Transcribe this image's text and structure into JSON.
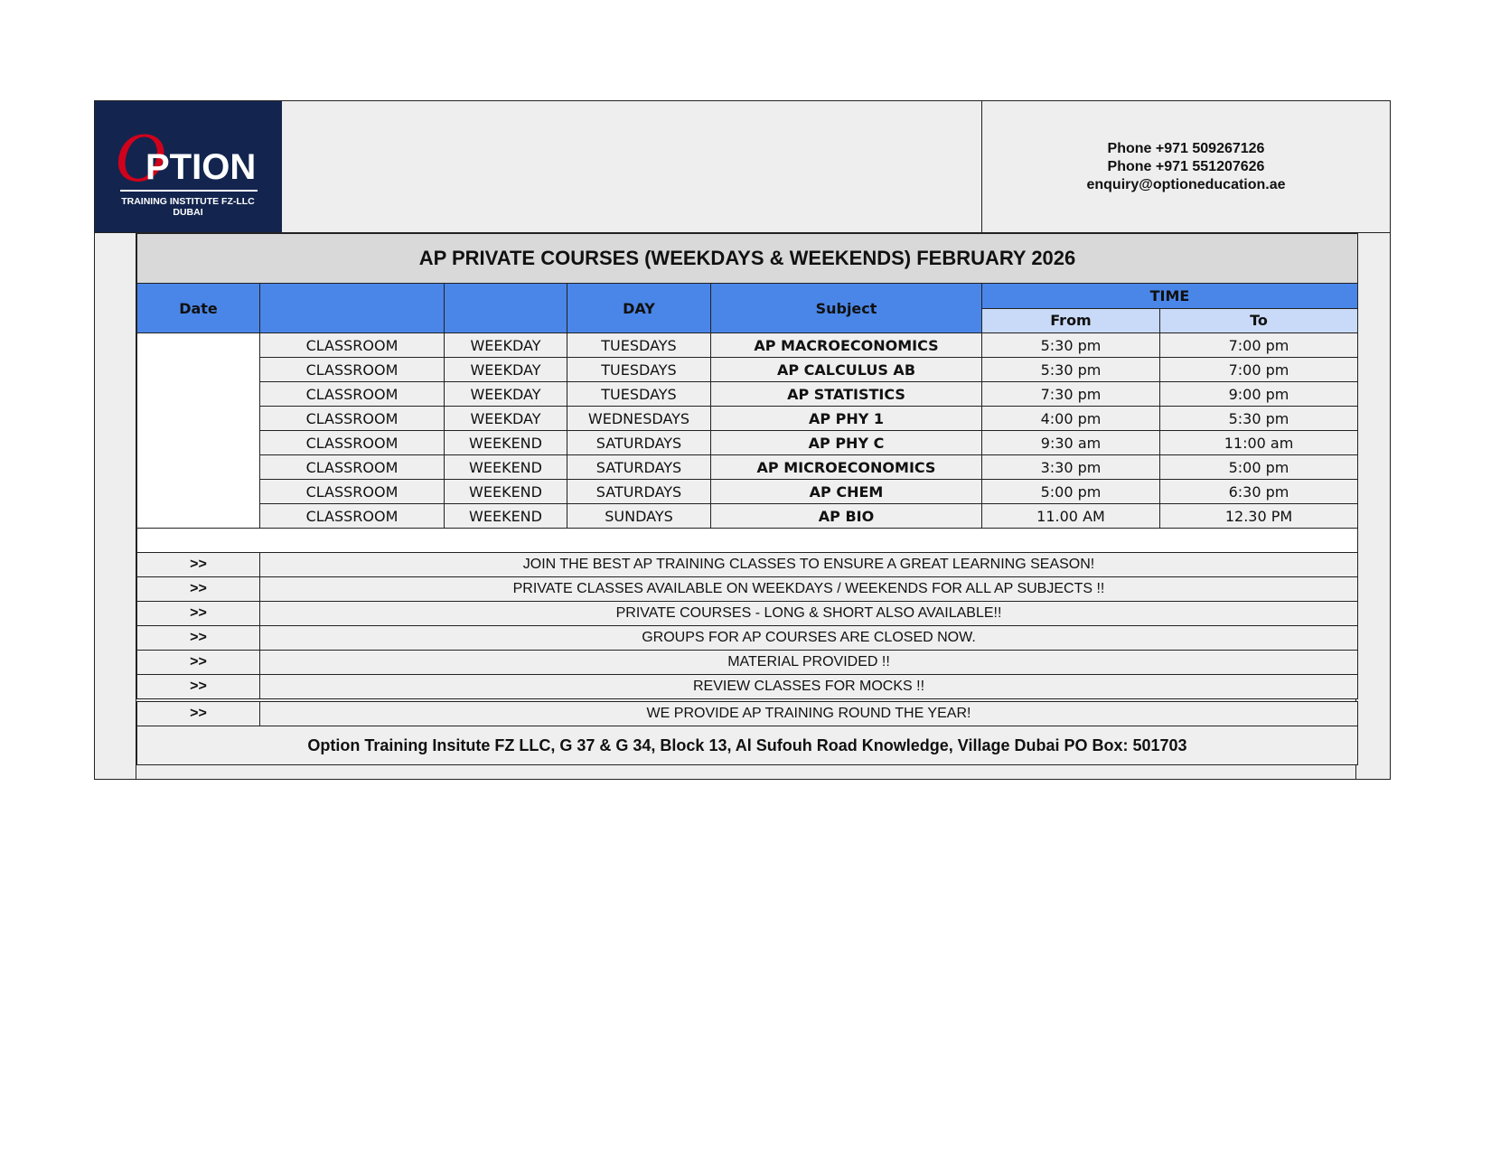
{
  "logo": {
    "letter": "O",
    "word": "PTION",
    "subtitle": "TRAINING INSTITUTE FZ-LLC",
    "city": "DUBAI",
    "brand_color": "#13254f",
    "accent_color": "#d0021b"
  },
  "contact": {
    "phone1": "Phone +971 509267126",
    "phone2": "Phone +971 551207626",
    "email": "enquiry@optioneducation.ae"
  },
  "title": "AP PRIVATE COURSES (WEEKDAYS & WEEKENDS) FEBRUARY 2026",
  "headers": {
    "date": "Date",
    "col2": "",
    "col3": "",
    "day": "DAY",
    "subject": "Subject",
    "time": "TIME",
    "from": "From",
    "to": "To"
  },
  "rows": [
    {
      "mode": "CLASSROOM",
      "period": "WEEKDAY",
      "day": "TUESDAYS",
      "subject": "AP MACROECONOMICS",
      "from": "5:30 pm",
      "to": "7:00 pm"
    },
    {
      "mode": "CLASSROOM",
      "period": "WEEKDAY",
      "day": "TUESDAYS",
      "subject": "AP CALCULUS AB",
      "from": "5:30 pm",
      "to": "7:00 pm"
    },
    {
      "mode": "CLASSROOM",
      "period": "WEEKDAY",
      "day": "TUESDAYS",
      "subject": "AP STATISTICS",
      "from": "7:30 pm",
      "to": "9:00 pm"
    },
    {
      "mode": "CLASSROOM",
      "period": "WEEKDAY",
      "day": "WEDNESDAYS",
      "subject": "AP PHY 1",
      "from": "4:00 pm",
      "to": "5:30 pm"
    },
    {
      "mode": "CLASSROOM",
      "period": "WEEKEND",
      "day": "SATURDAYS",
      "subject": "AP PHY C",
      "from": "9:30 am",
      "to": "11:00 am"
    },
    {
      "mode": "CLASSROOM",
      "period": "WEEKEND",
      "day": "SATURDAYS",
      "subject": "AP MICROECONOMICS",
      "from": "3:30 pm",
      "to": "5:00 pm"
    },
    {
      "mode": "CLASSROOM",
      "period": "WEEKEND",
      "day": "SATURDAYS",
      "subject": "AP CHEM",
      "from": "5:00 pm",
      "to": "6:30 pm"
    },
    {
      "mode": "CLASSROOM",
      "period": "WEEKEND",
      "day": "SUNDAYS",
      "subject": "AP BIO",
      "from": "11.00 AM",
      "to": "12.30 PM"
    }
  ],
  "notes": [
    {
      "marker": ">>",
      "text": "JOIN THE BEST AP TRAINING CLASSES TO ENSURE A GREAT LEARNING SEASON!"
    },
    {
      "marker": ">>",
      "text": "PRIVATE CLASSES AVAILABLE ON WEEKDAYS / WEEKENDS FOR ALL AP SUBJECTS  !!"
    },
    {
      "marker": ">>",
      "text": "PRIVATE COURSES - LONG & SHORT ALSO AVAILABLE!!"
    },
    {
      "marker": ">>",
      "text": "GROUPS FOR AP COURSES ARE CLOSED NOW."
    },
    {
      "marker": ">>",
      "text": "MATERIAL PROVIDED !!"
    },
    {
      "marker": ">>",
      "text": "REVIEW CLASSES FOR MOCKS !!"
    },
    {
      "marker": ">>",
      "text": "WE PROVIDE AP TRAINING ROUND THE YEAR!"
    }
  ],
  "footer": "Option Training Insitute FZ LLC, G 37 & G 34, Block 13, Al Sufouh Road Knowledge, Village Dubai PO Box: 501703"
}
